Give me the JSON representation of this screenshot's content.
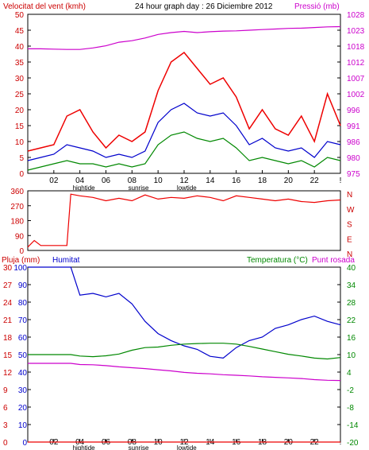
{
  "header": {
    "left_title": "Velocitat del vent (kmh)",
    "center_title": "24 hour graph day : 26 Diciembre 2012",
    "right_title": "Pressió (mb)"
  },
  "panel3_header": {
    "rain": "Pluja (mm)",
    "humidity": "Humitat",
    "temp": "Temperatura (°C)",
    "dew": "Punt rosada"
  },
  "x_ticks": [
    "02",
    "04",
    "06",
    "08",
    "10",
    "12",
    "14",
    "16",
    "18",
    "20",
    "22",
    "!"
  ],
  "events": [
    "hightide",
    "sunrise",
    "lowtide"
  ],
  "colors": {
    "wind_gust": "#ee0000",
    "wind_avg": "#0000cc",
    "wind_low": "#008800",
    "pressure": "#cc00cc",
    "humidity": "#0000cc",
    "temp": "#008800",
    "dew": "#cc00cc",
    "rain": "#ee0000",
    "axis_red": "#cc0000",
    "axis_magenta": "#cc00cc",
    "axis_green": "#008800",
    "axis_blue": "#0000cc"
  },
  "chart_data": [
    {
      "type": "line",
      "ylim_left": [
        0,
        50
      ],
      "yticks_left": [
        "0",
        "5",
        "10",
        "15",
        "20",
        "25",
        "30",
        "35",
        "40",
        "45",
        "50"
      ],
      "ylim_right": [
        975,
        1028
      ],
      "yticks_right": [
        "975",
        "980",
        "986",
        "991",
        "996",
        "1002",
        "1007",
        "1012",
        "1018",
        "1023",
        "1028"
      ],
      "x": [
        0,
        1,
        2,
        3,
        4,
        5,
        6,
        7,
        8,
        9,
        10,
        11,
        12,
        13,
        14,
        15,
        16,
        17,
        18,
        19,
        20,
        21,
        22,
        23,
        24
      ],
      "series": [
        {
          "key": "gust",
          "values": [
            7,
            8,
            9,
            18,
            20,
            13,
            8,
            12,
            10,
            13,
            26,
            35,
            38,
            33,
            28,
            30,
            24,
            14,
            20,
            14,
            12,
            18,
            10,
            25,
            15
          ]
        },
        {
          "key": "avg",
          "values": [
            4,
            5,
            6,
            9,
            8,
            7,
            5,
            6,
            5,
            7,
            16,
            20,
            22,
            19,
            18,
            19,
            15,
            9,
            11,
            8,
            7,
            8,
            5,
            10,
            9
          ]
        },
        {
          "key": "low",
          "values": [
            1,
            2,
            3,
            4,
            3,
            3,
            2,
            3,
            2,
            3,
            9,
            12,
            13,
            11,
            10,
            11,
            8,
            4,
            5,
            4,
            3,
            4,
            2,
            5,
            4
          ]
        },
        {
          "key": "pressure",
          "values": [
            1016.5,
            1016.5,
            1016.4,
            1016.3,
            1016.3,
            1016.8,
            1017.5,
            1018.7,
            1019.2,
            1020.1,
            1021.3,
            1021.9,
            1022.3,
            1021.9,
            1022.2,
            1022.4,
            1022.5,
            1022.7,
            1022.9,
            1023.1,
            1023.3,
            1023.4,
            1023.6,
            1023.8,
            1023.9
          ]
        }
      ]
    },
    {
      "type": "line",
      "title_right_letters": [
        "N",
        "W",
        "S",
        "E",
        "N"
      ],
      "ylim": [
        0,
        360
      ],
      "yticks": [
        "0",
        "90",
        "180",
        "270",
        "360"
      ],
      "x": [
        0,
        0.5,
        1,
        2,
        3,
        3.3,
        4,
        5,
        6,
        7,
        8,
        9,
        10,
        11,
        12,
        13,
        14,
        15,
        16,
        17,
        18,
        19,
        20,
        21,
        22,
        23,
        24
      ],
      "values": [
        20,
        60,
        30,
        30,
        30,
        340,
        330,
        320,
        300,
        315,
        300,
        335,
        310,
        320,
        315,
        330,
        320,
        300,
        330,
        320,
        310,
        300,
        310,
        295,
        290,
        300,
        305
      ]
    },
    {
      "type": "line",
      "ylim_rain": [
        0,
        30
      ],
      "yticks_rain": [
        "0",
        "3",
        "6",
        "9",
        "12",
        "15",
        "18",
        "21",
        "24",
        "27",
        "30"
      ],
      "ylim_humidity": [
        0,
        100
      ],
      "yticks_humidity": [
        "0",
        "10",
        "20",
        "30",
        "40",
        "50",
        "60",
        "70",
        "80",
        "90",
        "100"
      ],
      "ylim_temp": [
        -20,
        40
      ],
      "yticks_temp": [
        "-20",
        "-14",
        "-8",
        "-2",
        "4",
        "10",
        "16",
        "22",
        "28",
        "34",
        "40"
      ],
      "x": [
        0,
        1,
        2,
        3,
        3.3,
        4,
        5,
        6,
        7,
        8,
        9,
        10,
        11,
        12,
        13,
        14,
        15,
        16,
        17,
        18,
        19,
        20,
        21,
        22,
        23,
        24
      ],
      "series": [
        {
          "key": "humidity",
          "values": [
            100,
            100,
            100,
            100,
            100,
            84,
            85,
            83,
            85,
            79,
            69,
            62,
            58,
            55,
            53,
            49,
            48,
            54,
            58,
            60,
            65,
            67,
            70,
            72,
            69,
            67
          ]
        },
        {
          "key": "temp",
          "values": [
            10,
            10,
            10,
            10,
            10,
            9.5,
            9.3,
            9.6,
            10.2,
            11.5,
            12.4,
            12.6,
            13.2,
            13.6,
            13.8,
            13.9,
            13.9,
            13.6,
            12.8,
            11.9,
            11.0,
            10.1,
            9.5,
            8.8,
            8.5,
            9.0
          ]
        },
        {
          "key": "dew",
          "values": [
            7,
            7,
            7,
            7,
            7,
            6.6,
            6.5,
            6.2,
            5.8,
            5.5,
            5.2,
            4.8,
            4.4,
            3.9,
            3.6,
            3.4,
            3.1,
            2.9,
            2.7,
            2.4,
            2.2,
            2.0,
            1.8,
            1.4,
            1.2,
            1.1
          ]
        },
        {
          "key": "rain",
          "values": [
            0,
            0,
            0,
            0,
            0,
            0,
            0,
            0,
            0,
            0,
            0,
            0,
            0,
            0,
            0,
            0,
            0,
            0,
            0,
            0,
            0,
            0,
            0,
            0,
            0,
            0
          ]
        }
      ]
    }
  ]
}
